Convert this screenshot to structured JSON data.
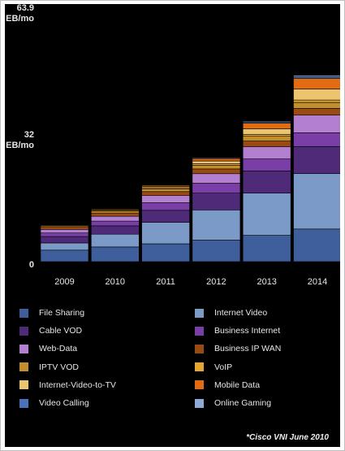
{
  "chart_data": {
    "type": "bar",
    "stacked": true,
    "categories": [
      "2009",
      "2010",
      "2011",
      "2012",
      "2013",
      "2014"
    ],
    "y_tick_labels": [
      {
        "value": 63.9,
        "lines": [
          "63.9",
          "EB/mo"
        ]
      },
      {
        "value": 32,
        "lines": [
          "32",
          "EB/mo"
        ]
      },
      {
        "value": 0,
        "lines": [
          "0"
        ]
      }
    ],
    "ylim": [
      0,
      63.9
    ],
    "series": [
      {
        "name": "File Sharing",
        "color": "#3e5f9b",
        "values": [
          2.9,
          3.7,
          4.5,
          5.4,
          6.6,
          8.2
        ]
      },
      {
        "name": "Internet Video",
        "color": "#7b9ac8",
        "values": [
          1.8,
          3.2,
          5.4,
          7.6,
          10.6,
          13.9
        ]
      },
      {
        "name": "Cable VOD",
        "color": "#4f2a79",
        "values": [
          1.6,
          2.1,
          3.0,
          4.2,
          5.6,
          6.8
        ]
      },
      {
        "name": "Business Internet",
        "color": "#7a3fa6",
        "values": [
          0.9,
          1.2,
          1.9,
          2.5,
          3.0,
          3.5
        ]
      },
      {
        "name": "Web-Data",
        "color": "#b37fd0",
        "values": [
          0.9,
          1.2,
          1.8,
          2.4,
          3.1,
          4.4
        ]
      },
      {
        "name": "Business IP WAN",
        "color": "#9a4a13",
        "values": [
          0.7,
          0.8,
          1.0,
          1.2,
          1.4,
          1.7
        ]
      },
      {
        "name": "IPTV VOD",
        "color": "#c38e2c",
        "values": [
          0.3,
          0.5,
          0.7,
          0.9,
          1.2,
          1.5
        ]
      },
      {
        "name": "VoIP",
        "color": "#e4a733",
        "values": [
          0.1,
          0.2,
          0.3,
          0.4,
          0.5,
          0.6
        ]
      },
      {
        "name": "Internet-Video-to-TV",
        "color": "#ecc46d",
        "values": [
          0.1,
          0.2,
          0.3,
          0.7,
          1.4,
          2.8
        ]
      },
      {
        "name": "Mobile Data",
        "color": "#e36c12",
        "values": [
          0.1,
          0.2,
          0.3,
          0.6,
          1.4,
          2.6
        ]
      },
      {
        "name": "Video Calling",
        "color": "#4a72b8",
        "values": [
          0.0,
          0.1,
          0.1,
          0.2,
          0.3,
          0.5
        ]
      },
      {
        "name": "Online Gaming",
        "color": "#8fa8d4",
        "values": [
          0.1,
          0.1,
          0.1,
          0.1,
          0.2,
          0.3
        ]
      }
    ],
    "legend_position": "bottom",
    "grid": false
  },
  "source_note": "*Cisco VNI June 2010"
}
